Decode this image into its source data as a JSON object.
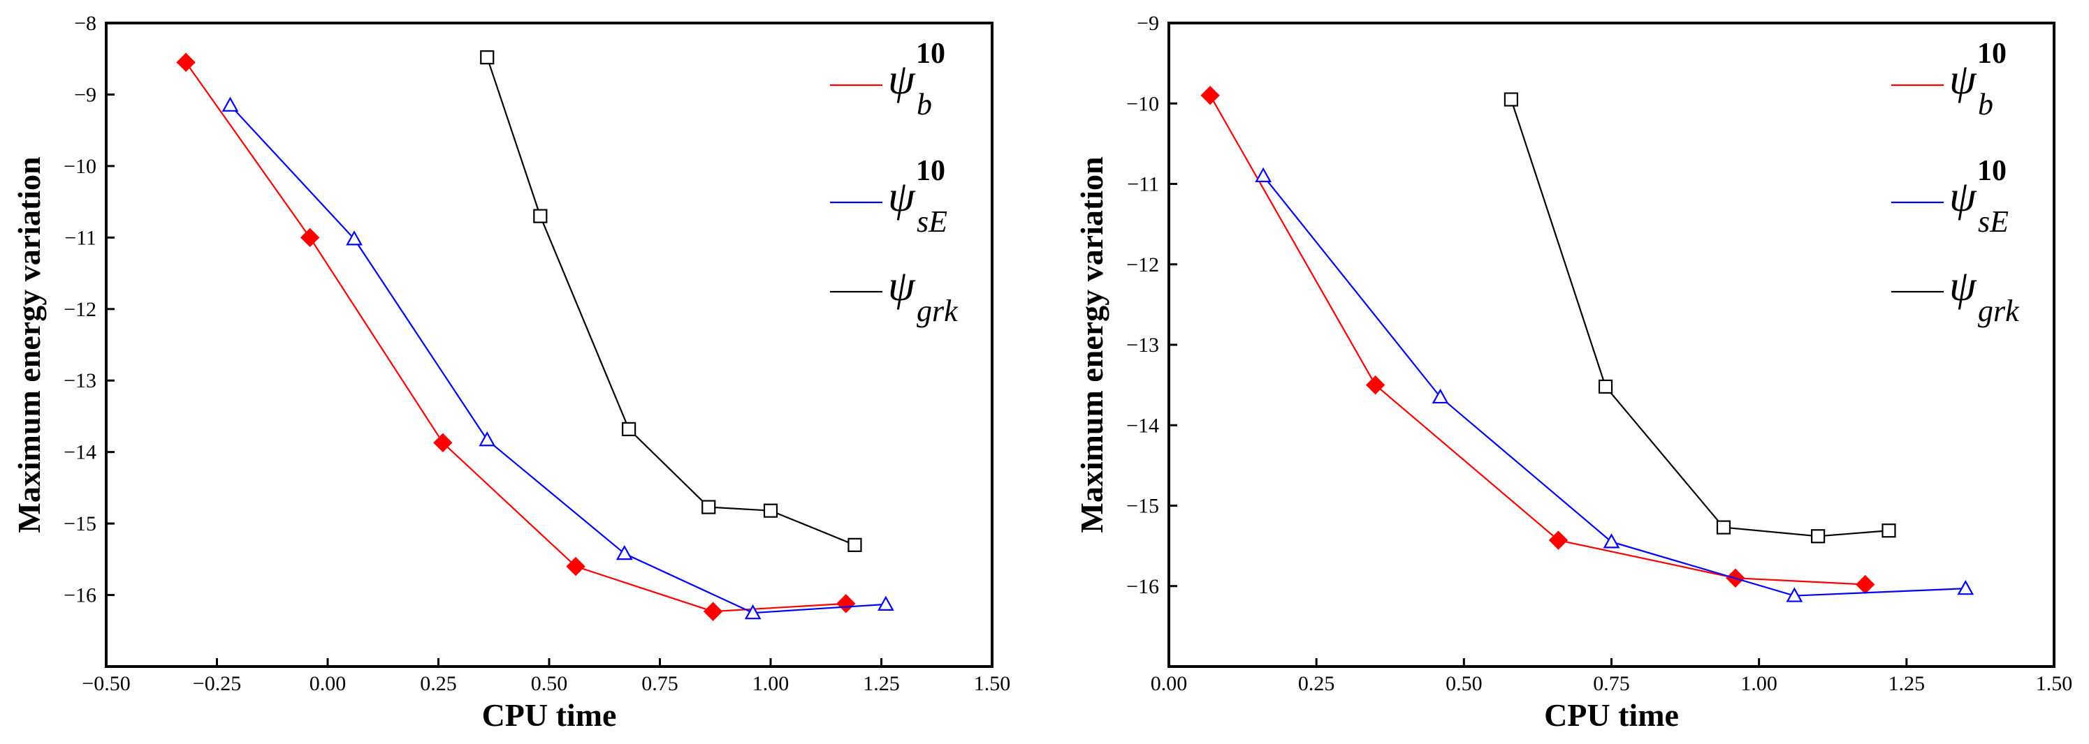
{
  "chart_data": [
    {
      "type": "line",
      "title": "",
      "xlabel": "CPU time",
      "ylabel": "Maximum energy variation",
      "xlim": [
        -0.5,
        1.5
      ],
      "ylim": [
        -17,
        -8
      ],
      "xticks": [
        -0.5,
        -0.25,
        0.0,
        0.25,
        0.5,
        0.75,
        1.0,
        1.25,
        1.5
      ],
      "xtick_labels": [
        "−0.50",
        "−0.25",
        "0.00",
        "0.25",
        "0.50",
        "0.75",
        "1.00",
        "1.25",
        "1.50"
      ],
      "yticks": [
        -16,
        -15,
        -14,
        -13,
        -12,
        -11,
        -10,
        -9,
        -8
      ],
      "ytick_labels": [
        "−16",
        "−15",
        "−14",
        "−13",
        "−12",
        "−11",
        "−10",
        "−9",
        "−8"
      ],
      "grid": false,
      "legend_position": "top-right",
      "series": [
        {
          "name": "ψ_b^10",
          "sym": "ψ",
          "sub": "b",
          "sup": "10",
          "color": "#ff0000",
          "marker": "diamond",
          "x": [
            -0.32,
            -0.04,
            0.26,
            0.56,
            0.87,
            1.17
          ],
          "y": [
            -8.55,
            -11.0,
            -13.87,
            -15.6,
            -16.23,
            -16.12
          ]
        },
        {
          "name": "ψ_sE^10",
          "sym": "ψ",
          "sub": "sE",
          "sup": "10",
          "color": "#0000ff",
          "marker": "triangle",
          "x": [
            -0.22,
            0.06,
            0.36,
            0.67,
            0.96,
            1.26
          ],
          "y": [
            -9.15,
            -11.02,
            -13.83,
            -15.42,
            -16.25,
            -16.13
          ]
        },
        {
          "name": "ψ_grk",
          "sym": "ψ",
          "sub": "grk",
          "sup": "",
          "color": "#000000",
          "marker": "square",
          "x": [
            0.36,
            0.48,
            0.68,
            0.86,
            1.0,
            1.19
          ],
          "y": [
            -8.48,
            -10.7,
            -13.68,
            -14.77,
            -14.82,
            -15.3
          ]
        }
      ]
    },
    {
      "type": "line",
      "title": "",
      "xlabel": "CPU time",
      "ylabel": "Maximum energy variation",
      "xlim": [
        0.0,
        1.5
      ],
      "ylim": [
        -17,
        -9
      ],
      "xticks": [
        0.0,
        0.25,
        0.5,
        0.75,
        1.0,
        1.25,
        1.5
      ],
      "xtick_labels": [
        "0.00",
        "0.25",
        "0.50",
        "0.75",
        "1.00",
        "1.25",
        "1.50"
      ],
      "yticks": [
        -16,
        -15,
        -14,
        -13,
        -12,
        -11,
        -10,
        -9
      ],
      "ytick_labels": [
        "−16",
        "−15",
        "−14",
        "−13",
        "−12",
        "−11",
        "−10",
        "−9"
      ],
      "grid": false,
      "legend_position": "top-right",
      "series": [
        {
          "name": "ψ_b^10",
          "sym": "ψ",
          "sub": "b",
          "sup": "10",
          "color": "#ff0000",
          "marker": "diamond",
          "x": [
            0.07,
            0.35,
            0.66,
            0.96,
            1.18
          ],
          "y": [
            -9.9,
            -13.5,
            -15.43,
            -15.9,
            -15.98
          ]
        },
        {
          "name": "ψ_sE^10",
          "sym": "ψ",
          "sub": "sE",
          "sup": "10",
          "color": "#0000ff",
          "marker": "triangle",
          "x": [
            0.16,
            0.46,
            0.75,
            1.06,
            1.35
          ],
          "y": [
            -10.9,
            -13.65,
            -15.45,
            -16.12,
            -16.03
          ]
        },
        {
          "name": "ψ_grk",
          "sym": "ψ",
          "sub": "grk",
          "sup": "",
          "color": "#000000",
          "marker": "square",
          "x": [
            0.58,
            0.74,
            0.94,
            1.1,
            1.22
          ],
          "y": [
            -9.95,
            -13.52,
            -15.27,
            -15.38,
            -15.31
          ]
        }
      ]
    }
  ]
}
